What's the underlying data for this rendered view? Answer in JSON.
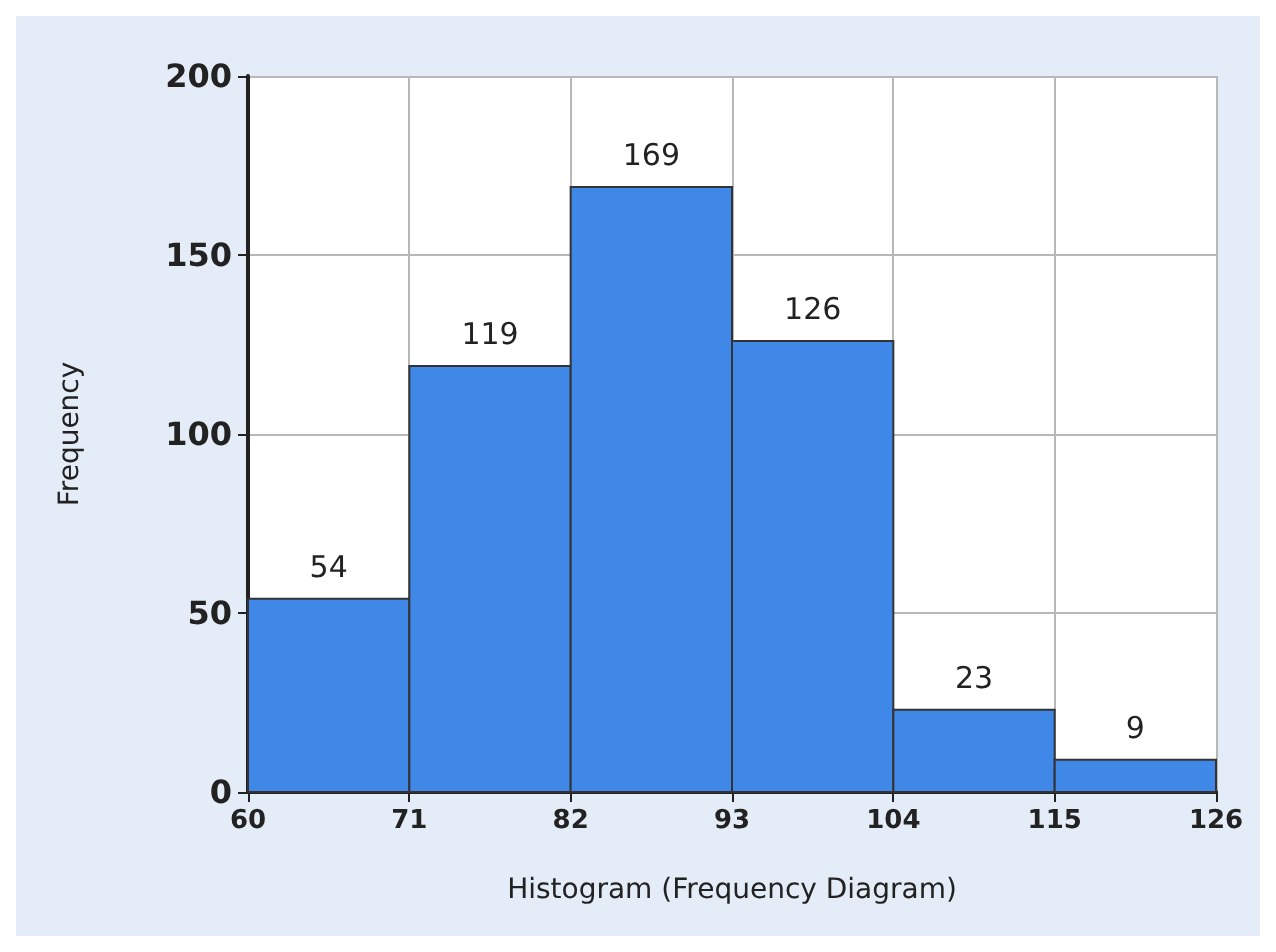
{
  "chart_data": {
    "type": "histogram",
    "xlabel": "Histogram (Frequency Diagram)",
    "ylabel": "Frequency",
    "bins": [
      60,
      71,
      82,
      93,
      104,
      115,
      126
    ],
    "values": [
      54,
      119,
      169,
      126,
      23,
      9
    ],
    "color": "#3f88e8",
    "data_labels": true,
    "xlim": [
      60,
      126
    ],
    "xticks": [
      60,
      71,
      82,
      93,
      104,
      115,
      126
    ],
    "ylim": [
      0,
      200
    ],
    "yticks": [
      0,
      50,
      100,
      150,
      200
    ],
    "grid": true
  }
}
